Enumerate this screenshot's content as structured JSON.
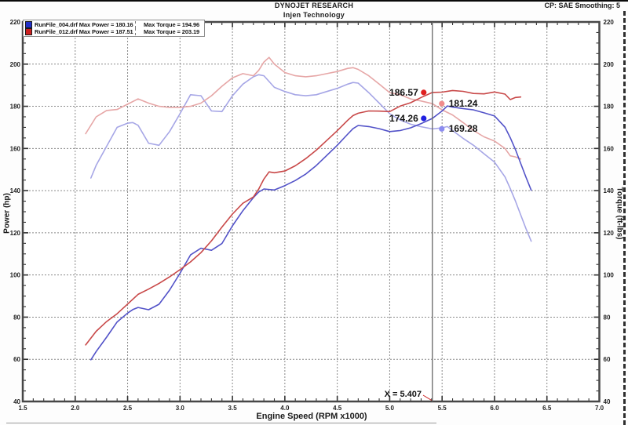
{
  "header": {
    "title": "DYNOJET RESEARCH",
    "subtitle": "Injen Technology",
    "correction_info": "CP: SAE  Smoothing: 5"
  },
  "legend": {
    "rows": [
      {
        "swatch_color": "#2230c8",
        "file_power": "RunFile_004.drf Max Power = 180.16",
        "torque": "Max Torque = 194.96"
      },
      {
        "swatch_color": "#cc2020",
        "file_power": "RunFile_012.drf Max Power = 187.51",
        "torque": "Max Torque = 203.19"
      }
    ]
  },
  "cursor": {
    "x": 5.407,
    "label": "X = 5.407",
    "readouts": [
      {
        "value": "186.57",
        "series": "RunFile_012.drf Power (hp)",
        "dot_color": "#e02020",
        "side": "left"
      },
      {
        "value": "181.24",
        "series": "RunFile_012.drf Torque (ft-lbs)",
        "dot_color": "#f08c8c",
        "side": "right"
      },
      {
        "value": "174.26",
        "series": "RunFile_004.drf Power (hp)",
        "dot_color": "#2020e0",
        "side": "left"
      },
      {
        "value": "169.28",
        "series": "RunFile_004.drf Torque (ft-lbs)",
        "dot_color": "#8c8cf0",
        "side": "right"
      }
    ]
  },
  "colors": {
    "grid": "#8a8a8a",
    "border": "#474747",
    "cursor_line": "#666666",
    "pointer_red": "#cc2222",
    "tick": "#333333"
  },
  "chart_data": {
    "type": "line",
    "title": "DYNOJET RESEARCH - Injen Technology dyno run comparison",
    "x_axis": {
      "label": "Engine Speed (RPM x1000)",
      "min": 1.5,
      "max": 7.0,
      "major_tick": 0.5,
      "minor_tick": 0.1,
      "tick_labels": [
        "1.5",
        "2.0",
        "2.5",
        "3.0",
        "3.5",
        "4.0",
        "4.5",
        "5.0",
        "5.5",
        "6.0",
        "6.5",
        "7.0"
      ]
    },
    "y_left": {
      "label": "Power (hp)",
      "min": 40,
      "max": 220,
      "major_tick": 20,
      "minor_tick": 5,
      "tick_labels": [
        "40",
        "60",
        "80",
        "100",
        "120",
        "140",
        "160",
        "180",
        "200",
        "220"
      ]
    },
    "y_right": {
      "label": "Torque (ft-lbs)",
      "min": 40,
      "max": 220,
      "major_tick": 20,
      "minor_tick": 5,
      "tick_labels": [
        "40",
        "60",
        "80",
        "100",
        "120",
        "140",
        "160",
        "180",
        "200",
        "220"
      ]
    },
    "grid": "dashed",
    "legend_position": "top-left",
    "series": [
      {
        "id": "run004-torque",
        "name": "RunFile_004.drf Torque",
        "unit": "ft-lbs",
        "color": "#a6a6e6",
        "max": 194.96,
        "x": [
          2.15,
          2.2,
          2.3,
          2.4,
          2.5,
          2.55,
          2.6,
          2.7,
          2.8,
          2.9,
          3.0,
          3.1,
          3.2,
          3.3,
          3.4,
          3.5,
          3.6,
          3.7,
          3.75,
          3.8,
          3.9,
          4.0,
          4.1,
          4.2,
          4.3,
          4.4,
          4.5,
          4.6,
          4.65,
          4.7,
          4.8,
          4.9,
          5.0,
          5.1,
          5.2,
          5.3,
          5.407,
          5.5,
          5.55,
          5.6,
          5.7,
          5.8,
          5.9,
          6.0,
          6.1,
          6.15,
          6.2,
          6.25,
          6.3,
          6.35
        ],
        "values": [
          146,
          152,
          161,
          170,
          172,
          172.3,
          171,
          162.5,
          161.5,
          168,
          176.5,
          185.5,
          185,
          177.8,
          177.5,
          185,
          190.5,
          194,
          194.96,
          194.5,
          189,
          187,
          185.5,
          185,
          185.5,
          187,
          188.5,
          190.5,
          191.3,
          191,
          186.5,
          181.5,
          176.5,
          173.5,
          171.5,
          170.3,
          169.28,
          169.8,
          170.4,
          168.5,
          164.8,
          161.5,
          157.5,
          153.5,
          146.5,
          141,
          135,
          128.5,
          122,
          116
        ]
      },
      {
        "id": "run012-torque",
        "name": "RunFile_012.drf Torque",
        "unit": "ft-lbs",
        "color": "#e6a6a6",
        "max": 203.19,
        "x": [
          2.1,
          2.2,
          2.3,
          2.4,
          2.5,
          2.6,
          2.7,
          2.8,
          2.9,
          3.0,
          3.1,
          3.2,
          3.3,
          3.4,
          3.5,
          3.6,
          3.7,
          3.75,
          3.8,
          3.85,
          3.9,
          4.0,
          4.1,
          4.2,
          4.3,
          4.4,
          4.5,
          4.6,
          4.65,
          4.7,
          4.8,
          4.9,
          5.0,
          5.1,
          5.2,
          5.3,
          5.407,
          5.5,
          5.6,
          5.7,
          5.8,
          5.9,
          6.0,
          6.1,
          6.15,
          6.2,
          6.25
        ],
        "values": [
          167,
          175,
          178,
          178.5,
          181,
          183.5,
          181.5,
          180,
          179.5,
          179.5,
          180,
          181.5,
          185,
          189.5,
          193.5,
          195.5,
          194.5,
          197,
          201,
          203.19,
          200,
          196,
          194.5,
          194,
          194.5,
          195.5,
          196.5,
          198,
          198.3,
          197.5,
          194.5,
          190.5,
          186.5,
          185.5,
          183.5,
          182.5,
          181.24,
          178.3,
          175.9,
          172.3,
          168.5,
          165.5,
          163.5,
          160,
          156.5,
          156,
          155
        ]
      },
      {
        "id": "run004-power",
        "name": "RunFile_004.drf Power",
        "unit": "hp",
        "color": "#5252c8",
        "max": 180.16,
        "x": [
          2.15,
          2.2,
          2.3,
          2.4,
          2.5,
          2.55,
          2.6,
          2.7,
          2.8,
          2.9,
          3.0,
          3.1,
          3.2,
          3.3,
          3.4,
          3.5,
          3.6,
          3.7,
          3.75,
          3.8,
          3.9,
          4.0,
          4.1,
          4.2,
          4.3,
          4.4,
          4.5,
          4.6,
          4.65,
          4.7,
          4.8,
          4.9,
          5.0,
          5.1,
          5.2,
          5.3,
          5.407,
          5.5,
          5.55,
          5.6,
          5.7,
          5.8,
          5.9,
          6.0,
          6.1,
          6.15,
          6.2,
          6.25,
          6.3,
          6.35
        ],
        "values": [
          59.8,
          63.7,
          70.5,
          77.7,
          81.9,
          83.6,
          84.6,
          83.5,
          86.1,
          92.8,
          100.8,
          109.5,
          112.7,
          111.7,
          114.9,
          123.3,
          130.5,
          136.7,
          139.3,
          140.8,
          140.3,
          142.4,
          144.8,
          147.9,
          151.9,
          156.7,
          161.5,
          166.8,
          169.4,
          170.9,
          170.4,
          169.4,
          168.0,
          168.5,
          169.8,
          171.8,
          174.26,
          177.8,
          180.16,
          179.6,
          178.9,
          178.3,
          176.9,
          175.4,
          170.1,
          165.1,
          159.4,
          152.9,
          146.4,
          140.2
        ]
      },
      {
        "id": "run012-power",
        "name": "RunFile_012.drf Power",
        "unit": "hp",
        "color": "#c84848",
        "max": 187.51,
        "x": [
          2.1,
          2.2,
          2.3,
          2.4,
          2.5,
          2.6,
          2.7,
          2.8,
          2.9,
          3.0,
          3.1,
          3.2,
          3.3,
          3.4,
          3.5,
          3.6,
          3.7,
          3.75,
          3.8,
          3.85,
          3.9,
          4.0,
          4.1,
          4.2,
          4.3,
          4.4,
          4.5,
          4.6,
          4.65,
          4.7,
          4.8,
          4.9,
          5.0,
          5.1,
          5.2,
          5.3,
          5.407,
          5.5,
          5.6,
          5.7,
          5.8,
          5.9,
          6.0,
          6.1,
          6.15,
          6.2,
          6.25
        ],
        "values": [
          66.8,
          73.3,
          77.9,
          81.6,
          86.2,
          90.8,
          93.3,
          96.0,
          99.1,
          102.5,
          106.2,
          110.6,
          116.2,
          122.7,
          128.9,
          134.0,
          137.0,
          140.7,
          145.5,
          148.9,
          148.5,
          149.3,
          151.8,
          155.2,
          159.2,
          163.8,
          168.4,
          173.4,
          175.6,
          176.7,
          177.8,
          177.7,
          177.5,
          180.1,
          181.7,
          184.2,
          186.57,
          186.7,
          187.51,
          187.1,
          186.1,
          185.9,
          186.8,
          185.8,
          183.2,
          184.2,
          184.4
        ]
      }
    ]
  }
}
